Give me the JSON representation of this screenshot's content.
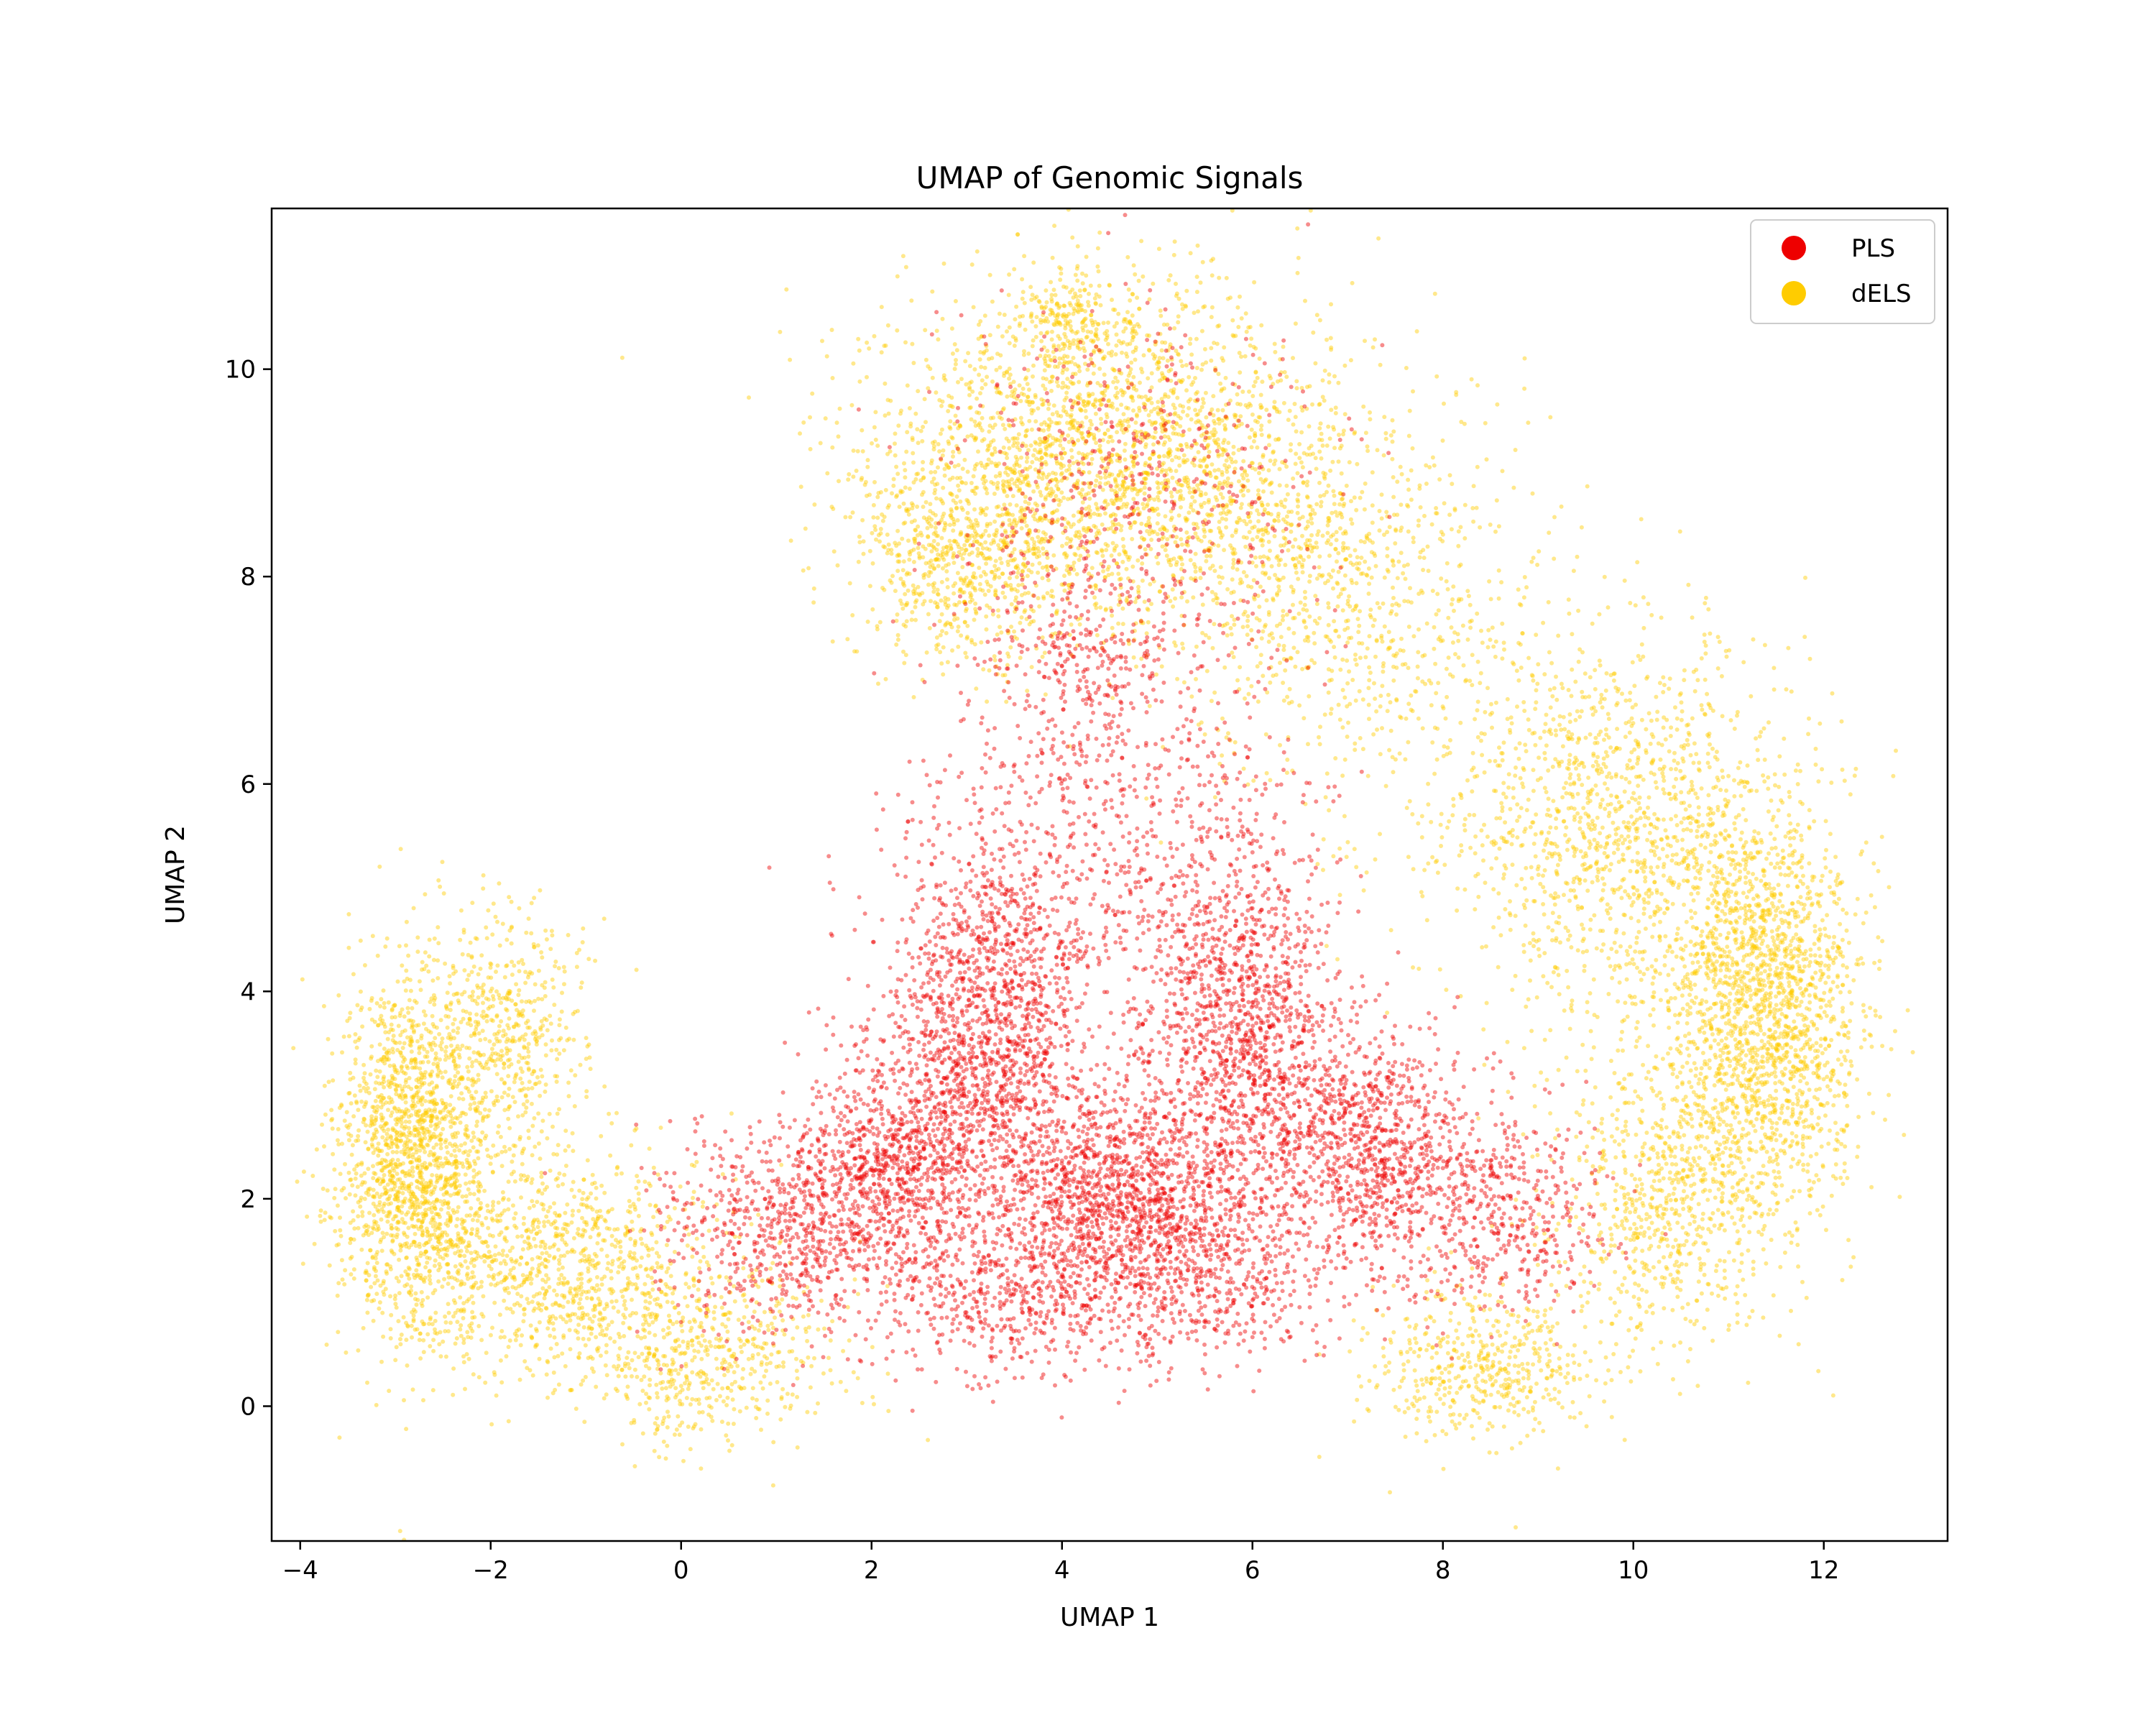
{
  "chart_data": {
    "type": "scatter",
    "title": "UMAP of Genomic Signals",
    "xlabel": "UMAP 1",
    "ylabel": "UMAP 2",
    "xlim": [
      -4.3,
      13.3
    ],
    "ylim": [
      -1.3,
      11.55
    ],
    "x_ticks": [
      -4,
      -2,
      0,
      2,
      4,
      6,
      8,
      10,
      12
    ],
    "y_ticks": [
      0,
      2,
      4,
      6,
      8,
      10
    ],
    "x_tick_labels": [
      "−4",
      "−2",
      "0",
      "2",
      "4",
      "6",
      "8",
      "10",
      "12"
    ],
    "y_tick_labels": [
      "0",
      "2",
      "4",
      "6",
      "8",
      "10"
    ],
    "grid": false,
    "legend_position": "top-right",
    "series": [
      {
        "name": "PLS",
        "color": "#ee0000",
        "clusters": [
          {
            "cx": 3.2,
            "cy": 3.6,
            "sx": 0.55,
            "sy": 0.9,
            "n": 1500
          },
          {
            "cx": 5.9,
            "cy": 3.6,
            "sx": 0.5,
            "sy": 0.9,
            "n": 1300
          },
          {
            "cx": 4.6,
            "cy": 2.0,
            "sx": 0.7,
            "sy": 0.6,
            "n": 1500
          },
          {
            "cx": 2.2,
            "cy": 2.2,
            "sx": 0.5,
            "sy": 0.6,
            "n": 900
          },
          {
            "cx": 7.2,
            "cy": 2.5,
            "sx": 0.5,
            "sy": 0.6,
            "n": 900
          },
          {
            "cx": 4.4,
            "cy": 5.5,
            "sx": 1.0,
            "sy": 1.0,
            "n": 700
          },
          {
            "cx": 1.0,
            "cy": 1.7,
            "sx": 0.6,
            "sy": 0.5,
            "n": 600
          },
          {
            "cx": 8.6,
            "cy": 1.9,
            "sx": 0.6,
            "sy": 0.5,
            "n": 500
          },
          {
            "cx": 4.8,
            "cy": 8.8,
            "sx": 1.0,
            "sy": 0.9,
            "n": 500
          },
          {
            "cx": 5.6,
            "cy": 1.2,
            "sx": 0.6,
            "sy": 0.4,
            "n": 400
          },
          {
            "cx": 3.4,
            "cy": 1.0,
            "sx": 0.6,
            "sy": 0.4,
            "n": 400
          },
          {
            "cx": 4.3,
            "cy": 7.2,
            "sx": 0.5,
            "sy": 0.5,
            "n": 250
          }
        ]
      },
      {
        "name": "dELS",
        "color": "#ffcc00",
        "clusters": [
          {
            "cx": -2.8,
            "cy": 2.4,
            "sx": 0.4,
            "sy": 0.9,
            "n": 1700
          },
          {
            "cx": -1.8,
            "cy": 3.6,
            "sx": 0.4,
            "sy": 0.6,
            "n": 500
          },
          {
            "cx": -1.3,
            "cy": 1.4,
            "sx": 0.8,
            "sy": 0.5,
            "n": 900
          },
          {
            "cx": 0.2,
            "cy": 0.5,
            "sx": 0.7,
            "sy": 0.45,
            "n": 600
          },
          {
            "cx": 11.4,
            "cy": 3.8,
            "sx": 0.5,
            "sy": 1.0,
            "n": 1800
          },
          {
            "cx": 10.3,
            "cy": 2.0,
            "sx": 0.6,
            "sy": 0.7,
            "n": 700
          },
          {
            "cx": 9.4,
            "cy": 5.8,
            "sx": 0.9,
            "sy": 0.9,
            "n": 800
          },
          {
            "cx": 8.4,
            "cy": 0.4,
            "sx": 0.6,
            "sy": 0.35,
            "n": 500
          },
          {
            "cx": 4.5,
            "cy": 9.2,
            "sx": 1.2,
            "sy": 0.8,
            "n": 2400
          },
          {
            "cx": 3.0,
            "cy": 8.3,
            "sx": 0.6,
            "sy": 0.6,
            "n": 700
          },
          {
            "cx": 6.9,
            "cy": 7.9,
            "sx": 1.0,
            "sy": 0.9,
            "n": 900
          },
          {
            "cx": 10.3,
            "cy": 5.2,
            "sx": 0.8,
            "sy": 1.0,
            "n": 700
          },
          {
            "cx": 4.1,
            "cy": 10.5,
            "sx": 0.25,
            "sy": 0.25,
            "n": 150
          }
        ]
      }
    ]
  }
}
